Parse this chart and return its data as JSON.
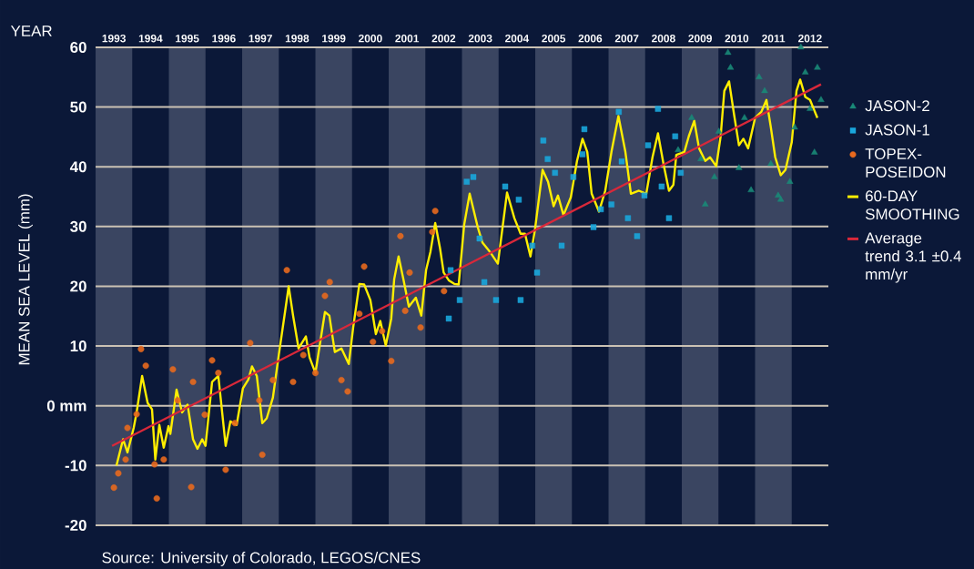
{
  "chart_data": {
    "type": "scatter",
    "xlabel": "YEAR",
    "ylabel": "MEAN SEA LEVEL (mm)",
    "annotations": [
      "Source: University of Colorado, LEGOS/CNES"
    ],
    "xlim": [
      1993,
      2013
    ],
    "ylim": [
      -20,
      60
    ],
    "xticks": [
      {
        "value": 1993.5,
        "label": "1993"
      },
      {
        "value": 1994.5,
        "label": "1994"
      },
      {
        "value": 1995.5,
        "label": "1995"
      },
      {
        "value": 1996.5,
        "label": "1996"
      },
      {
        "value": 1997.5,
        "label": "1997"
      },
      {
        "value": 1998.5,
        "label": "1998"
      },
      {
        "value": 1999.5,
        "label": "1999"
      },
      {
        "value": 2000.5,
        "label": "2000"
      },
      {
        "value": 2001.5,
        "label": "2001"
      },
      {
        "value": 2002.5,
        "label": "2002"
      },
      {
        "value": 2003.5,
        "label": "2003"
      },
      {
        "value": 2004.5,
        "label": "2004"
      },
      {
        "value": 2005.5,
        "label": "2005"
      },
      {
        "value": 2006.5,
        "label": "2006"
      },
      {
        "value": 2007.5,
        "label": "2007"
      },
      {
        "value": 2008.5,
        "label": "2008"
      },
      {
        "value": 2009.5,
        "label": "2009"
      },
      {
        "value": 2010.5,
        "label": "2010"
      },
      {
        "value": 2011.5,
        "label": "2011"
      },
      {
        "value": 2012.5,
        "label": "2012"
      }
    ],
    "yticks": [
      -20,
      -10,
      {
        "value": 0,
        "label": "0 mm"
      },
      10,
      20,
      30,
      40,
      50,
      60
    ],
    "grid": "y",
    "legend": "right",
    "bands": [
      {
        "axis": "x",
        "from": 1993,
        "to": 1994,
        "color": "#3a4561"
      },
      {
        "axis": "x",
        "from": 1995,
        "to": 1996,
        "color": "#3a4561"
      },
      {
        "axis": "x",
        "from": 1997,
        "to": 1998,
        "color": "#3a4561"
      },
      {
        "axis": "x",
        "from": 1999,
        "to": 2000,
        "color": "#3a4561"
      },
      {
        "axis": "x",
        "from": 2001,
        "to": 2002,
        "color": "#3a4561"
      },
      {
        "axis": "x",
        "from": 2003,
        "to": 2004,
        "color": "#3a4561"
      },
      {
        "axis": "x",
        "from": 2005,
        "to": 2006,
        "color": "#3a4561"
      },
      {
        "axis": "x",
        "from": 2007,
        "to": 2008,
        "color": "#3a4561"
      },
      {
        "axis": "x",
        "from": 2009,
        "to": 2010,
        "color": "#3a4561"
      },
      {
        "axis": "x",
        "from": 2011,
        "to": 2012,
        "color": "#3a4561"
      }
    ],
    "series": [
      {
        "name": "JASON-2",
        "marker": "triangle",
        "color": "#1a8a78",
        "x": [
          2008.9,
          2009.27,
          2009.52,
          2009.64,
          2009.89,
          2010.01,
          2010.26,
          2010.33,
          2010.56,
          2010.71,
          2010.89,
          2011.11,
          2011.26,
          2011.43,
          2011.63,
          2011.7,
          2011.95,
          2012.08,
          2012.25,
          2012.37,
          2012.5,
          2012.62,
          2012.8,
          2012.7
        ],
        "values": [
          42.8,
          48.2,
          41.3,
          33.7,
          38.3,
          45.9,
          59.1,
          56.6,
          39.8,
          48.2,
          36.1,
          55.0,
          52.7,
          40.5,
          35.2,
          34.5,
          37.5,
          46.6,
          60.0,
          55.8,
          49.7,
          42.4,
          51.2,
          56.6
        ]
      },
      {
        "name": "JASON-1",
        "marker": "square",
        "color": "#1aa6dc",
        "x": [
          2002.64,
          2002.69,
          2002.94,
          2003.13,
          2003.31,
          2003.48,
          2003.61,
          2003.93,
          2004.18,
          2004.55,
          2004.6,
          2004.92,
          2005.05,
          2005.22,
          2005.34,
          2005.54,
          2005.72,
          2006.04,
          2006.29,
          2006.34,
          2006.59,
          2006.79,
          2007.08,
          2007.28,
          2007.36,
          2007.53,
          2007.78,
          2007.98,
          2008.08,
          2008.35,
          2008.45,
          2008.65,
          2008.82,
          2008.97
        ],
        "values": [
          14.6,
          22.7,
          17.7,
          37.5,
          38.3,
          28.0,
          20.7,
          17.7,
          36.7,
          34.5,
          17.7,
          26.8,
          22.3,
          44.4,
          41.3,
          39.0,
          26.8,
          38.3,
          42.1,
          46.3,
          29.9,
          32.9,
          33.7,
          49.2,
          40.9,
          31.4,
          28.4,
          35.2,
          43.6,
          49.7,
          36.7,
          31.4,
          45.1,
          39.0
        ]
      },
      {
        "name": "TOPEX-POSEIDON",
        "marker": "circle",
        "color": "#e8691e",
        "x": [
          1993.5,
          1993.62,
          1993.82,
          1993.87,
          1994.12,
          1994.24,
          1994.37,
          1994.61,
          1994.67,
          1994.86,
          1995.11,
          1995.24,
          1995.61,
          1995.66,
          1995.98,
          1996.18,
          1996.35,
          1996.55,
          1996.8,
          1997.22,
          1997.47,
          1997.55,
          1997.84,
          1998.22,
          1998.39,
          1998.67,
          1999.0,
          1999.26,
          1999.39,
          1999.71,
          1999.88,
          2000.2,
          2000.33,
          2000.57,
          2000.82,
          2001.07,
          2001.32,
          2001.45,
          2001.57,
          2001.87,
          2002.19,
          2002.27,
          2002.51
        ],
        "values": [
          -13.7,
          -11.3,
          -9.0,
          -3.7,
          -1.4,
          9.5,
          6.7,
          -9.8,
          -15.5,
          -9.0,
          6.1,
          0.9,
          -13.6,
          4.0,
          -1.5,
          7.6,
          5.5,
          -10.7,
          -2.9,
          10.5,
          0.9,
          -8.2,
          4.3,
          22.7,
          4.0,
          8.5,
          5.5,
          18.4,
          20.7,
          4.3,
          2.4,
          15.4,
          23.3,
          10.7,
          12.5,
          7.5,
          28.4,
          15.9,
          22.3,
          13.1,
          29.1,
          32.6,
          19.2
        ]
      },
      {
        "name": "60-DAY SMOOTHING",
        "type": "line",
        "marker": "none",
        "color": "#ffee00",
        "x": [
          1993.57,
          1993.75,
          1993.87,
          1994.04,
          1994.12,
          1994.27,
          1994.42,
          1994.54,
          1994.63,
          1994.74,
          1994.86,
          1994.99,
          1995.04,
          1995.21,
          1995.36,
          1995.51,
          1995.66,
          1995.78,
          1995.91,
          1996.0,
          1996.18,
          1996.35,
          1996.55,
          1996.68,
          1996.85,
          1997.02,
          1997.17,
          1997.27,
          1997.4,
          1997.55,
          1997.67,
          1997.84,
          1998.0,
          1998.17,
          1998.27,
          1998.39,
          1998.54,
          1998.74,
          1998.84,
          1999.0,
          1999.26,
          1999.38,
          1999.53,
          1999.71,
          1999.91,
          2000.03,
          2000.2,
          2000.33,
          2000.5,
          2000.65,
          2000.77,
          2000.92,
          2001.07,
          2001.15,
          2001.27,
          2001.4,
          2001.55,
          2001.74,
          2001.89,
          2002.02,
          2002.14,
          2002.27,
          2002.4,
          2002.5,
          2002.64,
          2002.79,
          2002.91,
          2003.06,
          2003.21,
          2003.43,
          2003.56,
          2003.76,
          2003.98,
          2004.23,
          2004.43,
          2004.6,
          2004.72,
          2004.87,
          2004.99,
          2005.2,
          2005.35,
          2005.5,
          2005.62,
          2005.77,
          2005.97,
          2006.14,
          2006.29,
          2006.42,
          2006.54,
          2006.74,
          2006.91,
          2007.08,
          2007.27,
          2007.46,
          2007.61,
          2007.83,
          2008.03,
          2008.2,
          2008.35,
          2008.5,
          2008.65,
          2008.77,
          2008.85,
          2009.07,
          2009.19,
          2009.34,
          2009.47,
          2009.64,
          2009.77,
          2009.94,
          2010.06,
          2010.16,
          2010.29,
          2010.43,
          2010.56,
          2010.68,
          2010.81,
          2011.0,
          2011.17,
          2011.31,
          2011.43,
          2011.55,
          2011.7,
          2011.83,
          2012.0,
          2012.13,
          2012.23,
          2012.37,
          2012.5,
          2012.6,
          2012.7
        ],
        "values": [
          -10.0,
          -5.6,
          -7.8,
          -3.7,
          -1.1,
          5.0,
          0.5,
          -0.6,
          -9.0,
          -3.2,
          -7.0,
          -3.4,
          -4.7,
          2.7,
          -1.1,
          0.2,
          -5.6,
          -7.2,
          -5.6,
          -6.7,
          4.0,
          5.0,
          -6.7,
          -2.6,
          -3.2,
          2.9,
          4.4,
          6.6,
          5.0,
          -2.9,
          -2.1,
          1.4,
          8.5,
          15.7,
          20.0,
          15.1,
          9.6,
          11.6,
          8.1,
          5.5,
          15.7,
          15.1,
          9.0,
          9.6,
          7.0,
          13.1,
          20.4,
          20.3,
          17.7,
          12.0,
          14.2,
          10.1,
          14.6,
          21.2,
          25.0,
          21.2,
          16.6,
          18.1,
          15.1,
          22.7,
          25.8,
          30.6,
          26.4,
          22.3,
          21.0,
          20.4,
          20.3,
          30.3,
          35.5,
          29.9,
          27.3,
          25.8,
          23.8,
          35.7,
          31.4,
          28.8,
          28.8,
          25.0,
          29.4,
          39.5,
          37.5,
          33.4,
          35.2,
          31.9,
          34.9,
          41.0,
          44.7,
          42.5,
          35.5,
          32.5,
          36.0,
          42.5,
          48.5,
          42.5,
          35.5,
          36.0,
          35.5,
          41.6,
          45.6,
          40.5,
          36.0,
          37.0,
          42.0,
          42.5,
          45.1,
          47.7,
          43.1,
          41.0,
          41.6,
          40.1,
          45.1,
          52.7,
          54.3,
          48.6,
          43.6,
          44.7,
          43.1,
          48.2,
          49.2,
          51.2,
          46.6,
          41.6,
          38.6,
          39.5,
          44.1,
          52.7,
          54.6,
          51.7,
          51.2,
          49.7,
          48.2
        ]
      },
      {
        "name": "Average trend 3.1 ±0.4 mm/yr",
        "type": "line",
        "marker": "none",
        "color": "#d9283a",
        "x": [
          1993.45,
          2012.8
        ],
        "values": [
          -6.7,
          53.8
        ]
      }
    ]
  }
}
